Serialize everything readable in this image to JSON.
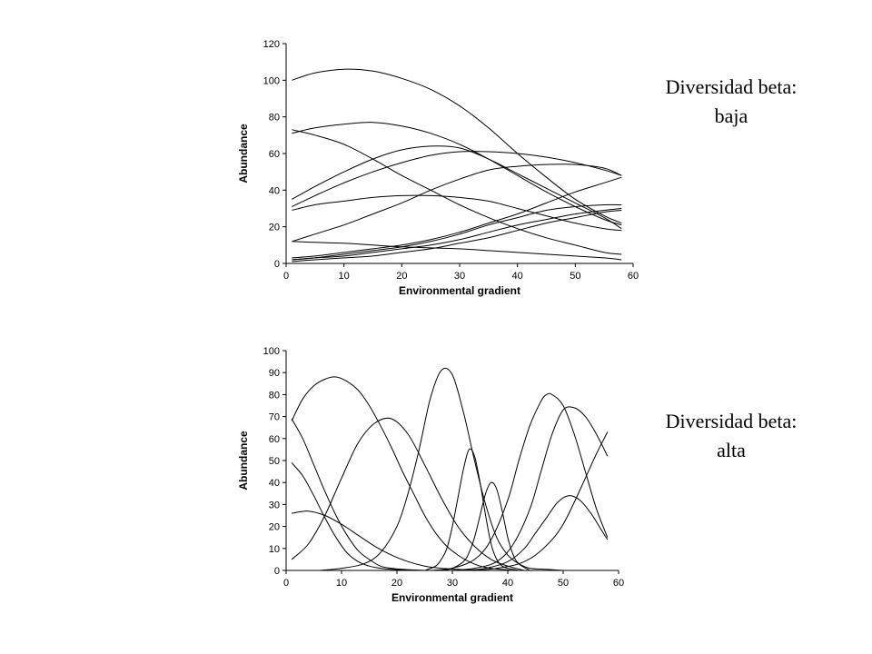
{
  "captions": {
    "top": {
      "line1": "Diversidad beta:",
      "line2": "baja"
    },
    "bottom": {
      "line1": "Diversidad beta:",
      "line2": "alta"
    }
  },
  "chart_data": [
    {
      "type": "line",
      "title": "",
      "xlabel": "Environmental gradient",
      "ylabel": "Abundance",
      "xlim": [
        0,
        60
      ],
      "ylim": [
        0,
        120
      ],
      "xticks": [
        0,
        10,
        20,
        30,
        40,
        50,
        60
      ],
      "yticks": [
        0,
        20,
        40,
        60,
        80,
        100,
        120
      ],
      "grid": false,
      "legend": "none",
      "line_color": "#000000",
      "series": [
        {
          "x": [
            1,
            5,
            10,
            15,
            20,
            25,
            30,
            35,
            40,
            45,
            50,
            55,
            58
          ],
          "values": [
            100,
            104,
            106,
            105,
            101,
            95,
            86,
            74,
            60,
            47,
            35,
            26,
            22
          ]
        },
        {
          "x": [
            1,
            5,
            10,
            15,
            20,
            25,
            30,
            35,
            40,
            45,
            50,
            55,
            58
          ],
          "values": [
            71,
            74,
            76,
            77,
            75,
            71,
            65,
            57,
            48,
            39,
            31,
            24,
            21
          ]
        },
        {
          "x": [
            1,
            5,
            10,
            15,
            20,
            25,
            30,
            35,
            40,
            45,
            50,
            55,
            58
          ],
          "values": [
            73,
            70,
            65,
            57,
            48,
            40,
            32,
            25,
            19,
            14,
            10,
            6,
            5
          ]
        },
        {
          "x": [
            1,
            5,
            10,
            15,
            20,
            25,
            30,
            35,
            40,
            45,
            50,
            55,
            58
          ],
          "values": [
            35,
            42,
            50,
            57,
            62,
            64,
            63,
            57,
            49,
            41,
            33,
            25,
            19
          ]
        },
        {
          "x": [
            1,
            5,
            10,
            15,
            20,
            25,
            30,
            35,
            40,
            45,
            50,
            55,
            58
          ],
          "values": [
            31,
            37,
            44,
            50,
            55,
            59,
            61,
            61,
            60,
            58,
            55,
            51,
            48
          ]
        },
        {
          "x": [
            1,
            5,
            10,
            15,
            20,
            25,
            30,
            35,
            40,
            45,
            50,
            55,
            58
          ],
          "values": [
            29,
            32,
            34,
            36,
            37,
            37,
            36,
            34,
            30,
            26,
            22,
            19,
            18
          ]
        },
        {
          "x": [
            1,
            5,
            10,
            15,
            20,
            25,
            30,
            35,
            40,
            45,
            50,
            55,
            58
          ],
          "values": [
            12,
            16,
            21,
            27,
            33,
            40,
            46,
            51,
            53,
            54,
            54,
            52,
            48
          ]
        },
        {
          "x": [
            1,
            5,
            10,
            15,
            20,
            25,
            30,
            35,
            40,
            45,
            50,
            55,
            58
          ],
          "values": [
            12,
            11.5,
            11,
            10,
            9,
            8.5,
            8,
            7,
            6,
            5,
            4,
            3,
            2
          ]
        },
        {
          "x": [
            1,
            5,
            10,
            15,
            20,
            25,
            30,
            35,
            40,
            45,
            50,
            55,
            58
          ],
          "values": [
            3,
            4,
            6,
            8,
            10,
            13,
            17,
            22,
            27,
            33,
            39,
            44,
            47
          ]
        },
        {
          "x": [
            1,
            5,
            10,
            15,
            20,
            25,
            30,
            35,
            40,
            45,
            50,
            55,
            58
          ],
          "values": [
            2,
            3,
            5,
            7,
            9,
            12,
            16,
            21,
            25,
            29,
            31,
            32,
            32
          ]
        },
        {
          "x": [
            1,
            5,
            10,
            15,
            20,
            25,
            30,
            35,
            40,
            45,
            50,
            55,
            58
          ],
          "values": [
            2,
            3,
            4,
            6,
            8,
            10,
            13,
            17,
            21,
            24,
            27,
            29,
            30
          ]
        },
        {
          "x": [
            1,
            5,
            10,
            15,
            20,
            25,
            30,
            35,
            40,
            45,
            50,
            55,
            58
          ],
          "values": [
            1,
            2,
            3,
            4,
            6,
            8,
            11,
            14,
            18,
            22,
            25,
            28,
            29
          ]
        }
      ]
    },
    {
      "type": "line",
      "title": "",
      "xlabel": "Environmental gradient",
      "ylabel": "Abundance",
      "xlim": [
        0,
        60
      ],
      "ylim": [
        0,
        100
      ],
      "xticks": [
        0,
        10,
        20,
        30,
        40,
        50,
        60
      ],
      "yticks": [
        0,
        10,
        20,
        30,
        40,
        50,
        60,
        70,
        80,
        90,
        100
      ],
      "grid": false,
      "legend": "none",
      "line_color": "#000000",
      "series": [
        {
          "x": [
            1,
            3,
            5,
            7,
            9,
            11,
            13,
            15,
            17,
            19,
            21,
            23,
            25,
            27,
            29,
            31,
            33,
            35,
            37,
            39,
            41
          ],
          "values": [
            68,
            78,
            84,
            87,
            88,
            86,
            82,
            75,
            66,
            56,
            45,
            35,
            25,
            17,
            11,
            7,
            4,
            2,
            1,
            0.5,
            0
          ]
        },
        {
          "x": [
            1,
            3,
            5,
            7,
            9,
            11,
            13,
            15,
            17,
            19,
            21,
            23,
            25,
            27,
            29,
            31,
            33,
            35
          ],
          "values": [
            69,
            60,
            48,
            36,
            25,
            16,
            9,
            5,
            2,
            1,
            0.5,
            0.2,
            0,
            0,
            0,
            0,
            0,
            0
          ]
        },
        {
          "x": [
            1,
            3,
            5,
            7,
            9,
            11,
            13,
            15,
            17,
            19,
            21,
            23,
            25,
            27
          ],
          "values": [
            49,
            43,
            34,
            24,
            15,
            8,
            4,
            2,
            1,
            0.5,
            0.2,
            0,
            0,
            0
          ]
        },
        {
          "x": [
            1,
            4,
            7,
            10,
            13,
            16,
            19,
            22,
            25,
            28,
            31,
            34
          ],
          "values": [
            26,
            27,
            25,
            21,
            16,
            11,
            7,
            4,
            2,
            1,
            0.5,
            0
          ]
        },
        {
          "x": [
            1,
            4,
            7,
            10,
            13,
            16,
            19,
            22,
            25,
            28,
            31,
            34,
            37,
            40,
            43
          ],
          "values": [
            5,
            12,
            25,
            42,
            58,
            67,
            69,
            62,
            48,
            33,
            20,
            11,
            5,
            2,
            0
          ]
        },
        {
          "x": [
            6,
            10,
            14,
            17,
            20,
            22,
            24,
            26,
            28,
            30,
            32,
            34,
            36,
            38,
            40,
            42,
            44,
            47,
            50
          ],
          "values": [
            0,
            1,
            3,
            8,
            20,
            35,
            55,
            78,
            91,
            89,
            72,
            50,
            30,
            15,
            7,
            3,
            1,
            0.5,
            0
          ]
        },
        {
          "x": [
            25,
            27,
            28,
            29,
            30,
            31,
            32,
            33,
            34,
            35,
            36,
            37,
            38,
            39,
            40,
            42
          ],
          "values": [
            0,
            2,
            5,
            10,
            20,
            33,
            46,
            55,
            52,
            40,
            25,
            12,
            5,
            2,
            1,
            0
          ]
        },
        {
          "x": [
            28,
            30,
            32,
            33,
            34,
            35,
            36,
            37,
            38,
            39,
            40,
            41,
            42,
            44
          ],
          "values": [
            0,
            1,
            4,
            8,
            15,
            25,
            35,
            40,
            37,
            27,
            15,
            7,
            3,
            0
          ]
        },
        {
          "x": [
            26,
            30,
            34,
            37,
            40,
            42,
            44,
            46,
            47,
            48,
            50,
            52,
            54,
            56,
            58
          ],
          "values": [
            0,
            1,
            5,
            14,
            32,
            50,
            66,
            77,
            80,
            80,
            75,
            62,
            45,
            28,
            15
          ]
        },
        {
          "x": [
            30,
            34,
            38,
            41,
            44,
            46,
            48,
            50,
            52,
            54,
            56,
            58
          ],
          "values": [
            0,
            1,
            4,
            12,
            28,
            45,
            62,
            73,
            74,
            70,
            62,
            52
          ]
        },
        {
          "x": [
            32,
            36,
            40,
            43,
            45,
            47,
            49,
            51,
            53,
            55,
            57,
            58
          ],
          "values": [
            0,
            1,
            4,
            10,
            17,
            24,
            31,
            34,
            32,
            26,
            18,
            14
          ]
        },
        {
          "x": [
            34,
            38,
            42,
            45,
            48,
            50,
            52,
            54,
            56,
            58
          ],
          "values": [
            0,
            1,
            3,
            7,
            14,
            21,
            31,
            42,
            53,
            63
          ]
        }
      ]
    }
  ]
}
